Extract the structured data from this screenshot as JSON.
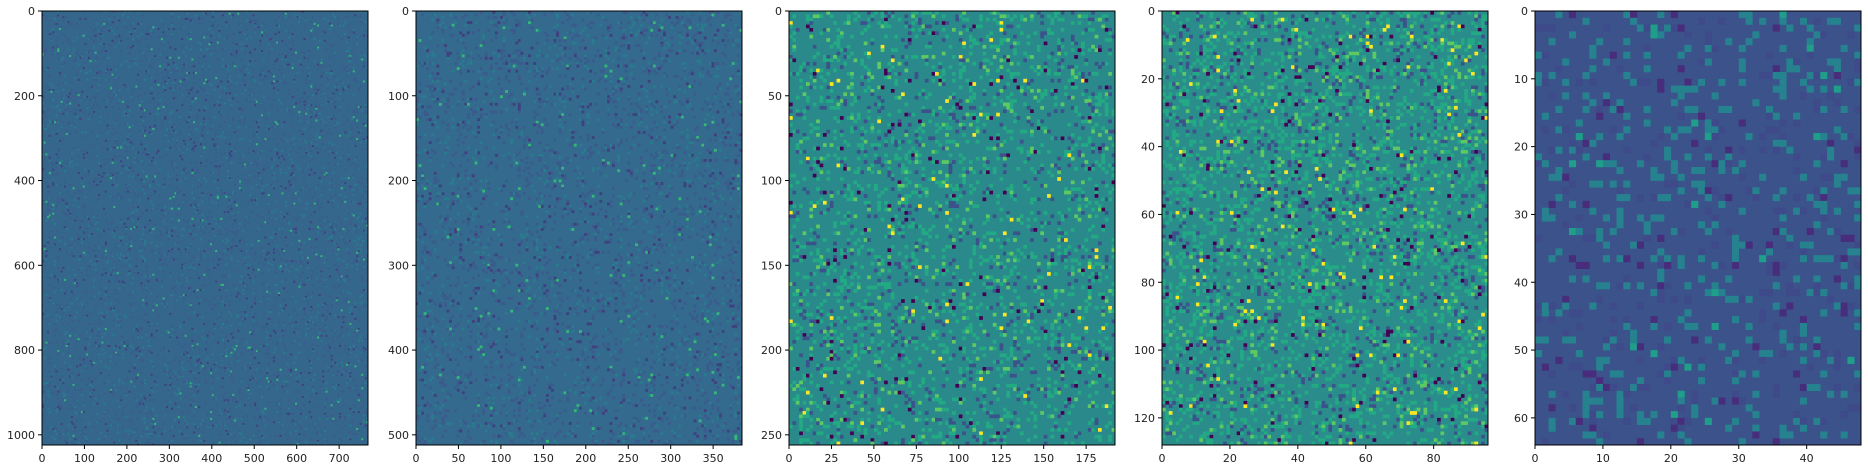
{
  "chart_data": [
    {
      "type": "heatmap",
      "xlim": [
        0,
        768
      ],
      "ylim": [
        1024,
        0
      ],
      "xticks": [
        0,
        100,
        200,
        300,
        400,
        500,
        600,
        700
      ],
      "yticks": [
        0,
        200,
        400,
        600,
        800,
        1000
      ],
      "grid_cells": [
        192,
        256
      ],
      "colormap": "viridis",
      "dominant_color": "#35678d"
    },
    {
      "type": "heatmap",
      "xlim": [
        0,
        384
      ],
      "ylim": [
        512,
        0
      ],
      "xticks": [
        0,
        50,
        100,
        150,
        200,
        250,
        300,
        350
      ],
      "yticks": [
        0,
        100,
        200,
        300,
        400,
        500
      ],
      "grid_cells": [
        128,
        170
      ],
      "colormap": "viridis",
      "dominant_color": "#336a8e"
    },
    {
      "type": "heatmap",
      "xlim": [
        0,
        192
      ],
      "ylim": [
        256,
        0
      ],
      "xticks": [
        0,
        25,
        50,
        75,
        100,
        125,
        150,
        175
      ],
      "yticks": [
        0,
        50,
        100,
        150,
        200,
        250
      ],
      "grid_cells": [
        96,
        128
      ],
      "colormap": "viridis",
      "dominant_color": "#2a8a8b"
    },
    {
      "type": "heatmap",
      "xlim": [
        0,
        96
      ],
      "ylim": [
        128,
        0
      ],
      "xticks": [
        0,
        20,
        40,
        60,
        80
      ],
      "yticks": [
        0,
        20,
        40,
        60,
        80,
        100,
        120
      ],
      "grid_cells": [
        96,
        128
      ],
      "colormap": "viridis",
      "dominant_color": "#2b8c8c"
    },
    {
      "type": "heatmap",
      "xlim": [
        0,
        48
      ],
      "ylim": [
        64,
        0
      ],
      "xticks": [
        0,
        10,
        20,
        30,
        40
      ],
      "yticks": [
        0,
        10,
        20,
        30,
        40,
        50,
        60
      ],
      "grid_cells": [
        48,
        64
      ],
      "colormap": "viridis",
      "dominant_color": "#3b528b"
    }
  ]
}
